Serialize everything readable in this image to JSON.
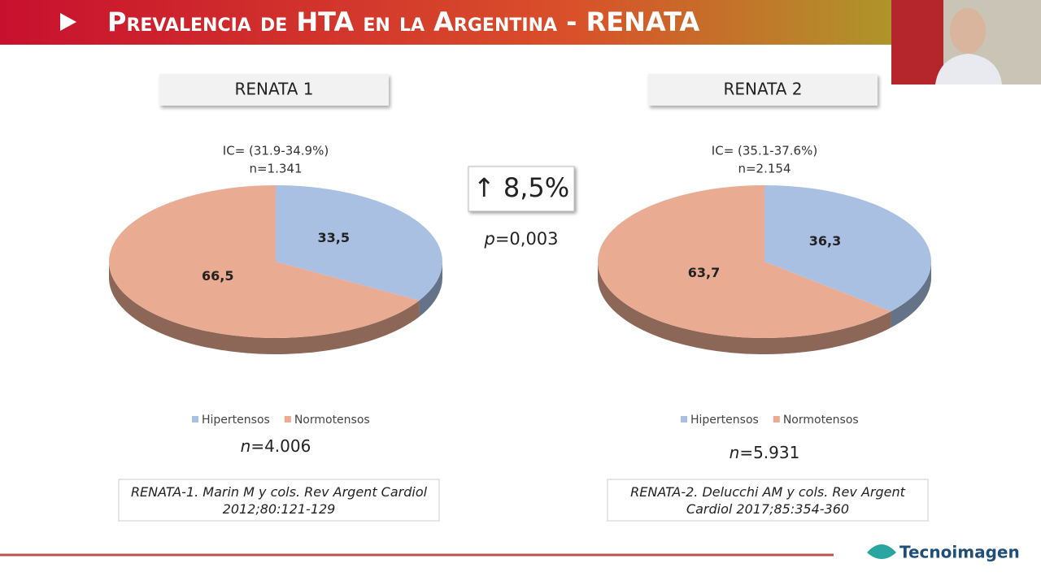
{
  "slide": {
    "title": "Prevalencia de HTA en la Argentina - RENATA",
    "change": "↑ 8,5%",
    "p_symbol": "p",
    "p_text": "=0,003",
    "logo": "Tecnoimagen"
  },
  "chart_data": [
    {
      "type": "pie",
      "title": "RENATA 1",
      "subtitle": "IC= (31.9-34.9%)",
      "annotation": "n=1.341",
      "categories": [
        "Hipertensos",
        "Normotensos"
      ],
      "values": [
        33.5,
        66.5
      ],
      "value_labels": [
        "33,5",
        "66,5"
      ],
      "colors": [
        "#a9c0e2",
        "#eaab93"
      ],
      "n_symbol": "n",
      "n_text": "=4.006",
      "reference": "RENATA-1. Marin M y cols. Rev Argent Cardiol 2012;80:121-129"
    },
    {
      "type": "pie",
      "title": "RENATA 2",
      "subtitle": "IC= (35.1-37.6%)",
      "annotation": "n=2.154",
      "categories": [
        "Hipertensos",
        "Normotensos"
      ],
      "values": [
        36.3,
        63.7
      ],
      "value_labels": [
        "36,3",
        "63,7"
      ],
      "colors": [
        "#a9c0e2",
        "#eaab93"
      ],
      "n_symbol": "n",
      "n_text": "=5.931",
      "reference": "RENATA-2. Delucchi AM y cols. Rev Argent Cardiol 2017;85:354-360"
    }
  ]
}
